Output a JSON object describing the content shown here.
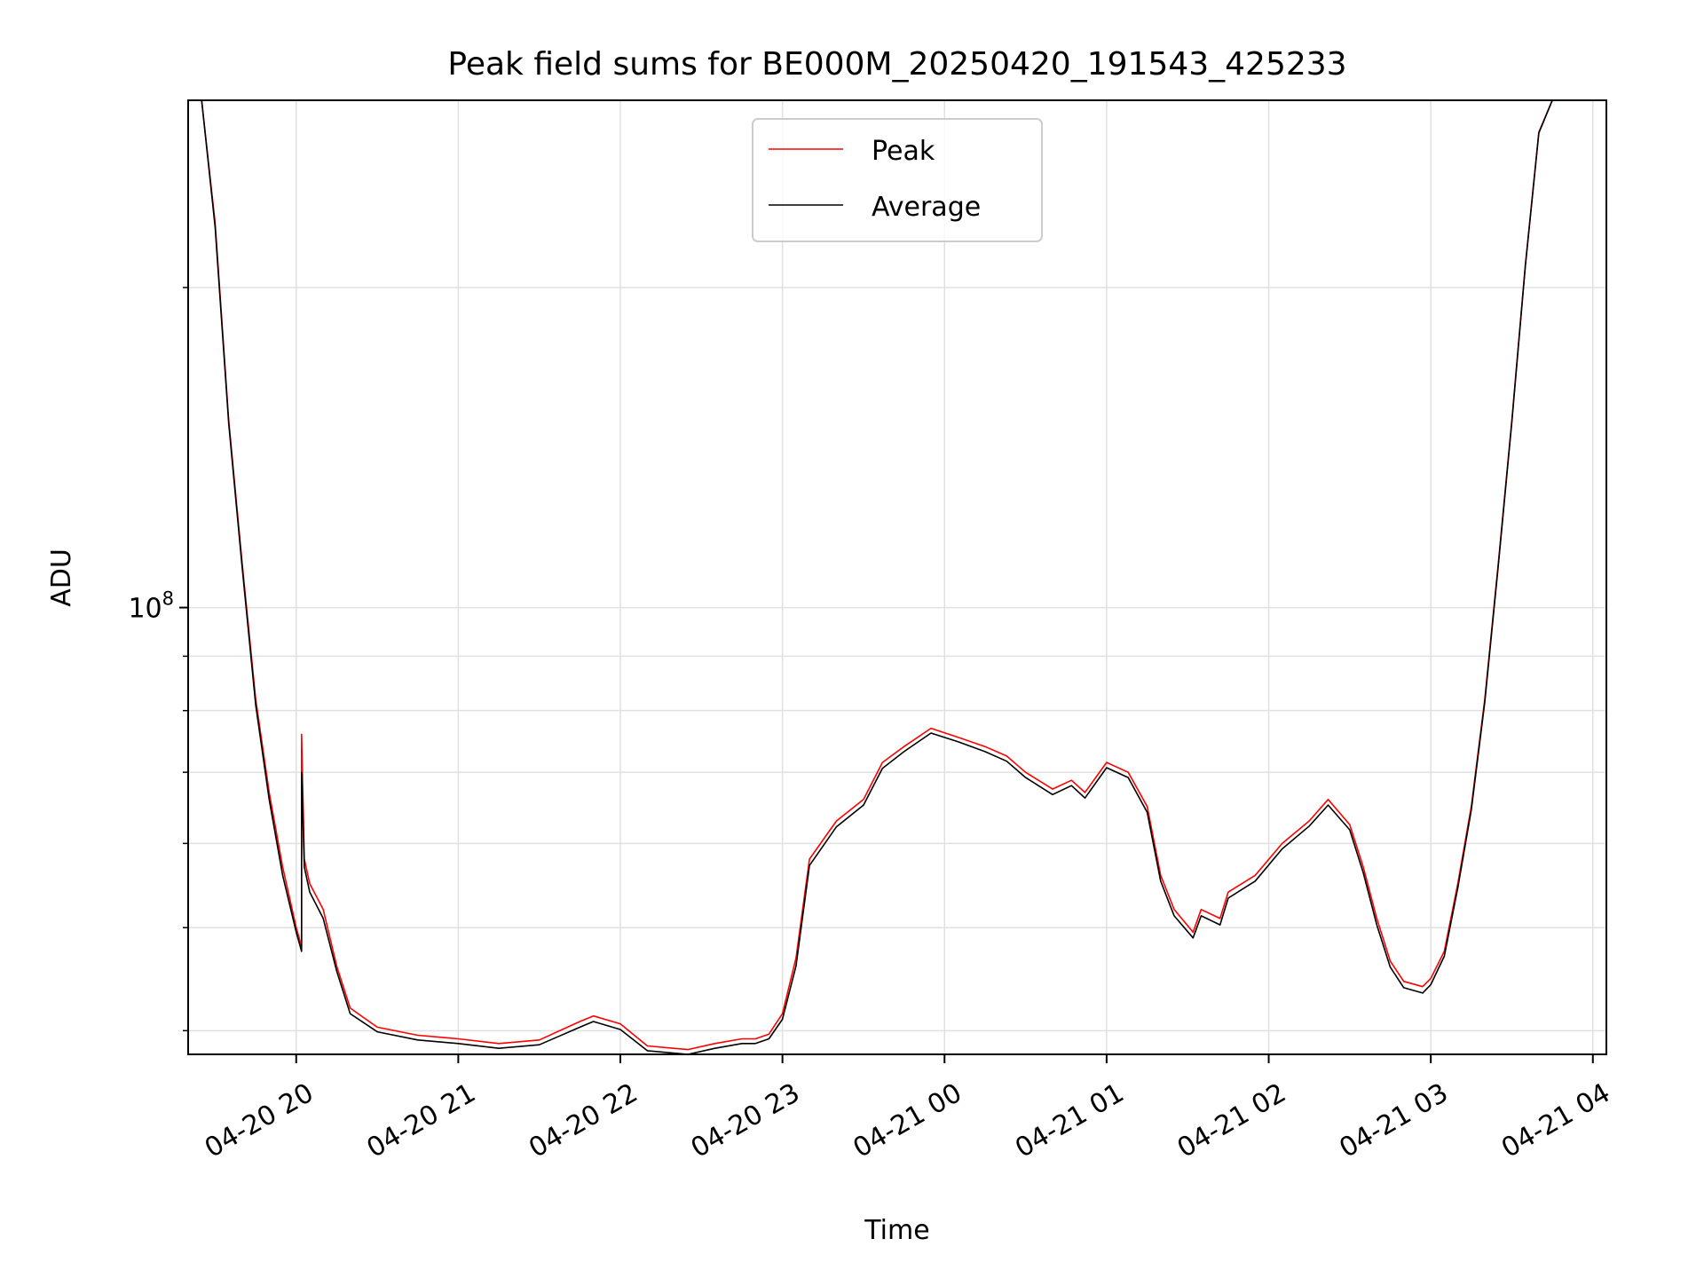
{
  "chart_data": {
    "type": "line",
    "title": "Peak field sums for BE000M_20250420_191543_425233",
    "xlabel": "Time",
    "ylabel": "ADU",
    "yscale": "log",
    "ylim": [
      38000000,
      300000000
    ],
    "xlim": [
      "2025-04-20 19:20",
      "2025-04-21 04:05"
    ],
    "grid": true,
    "legend_position": "upper center",
    "x_tick_labels": [
      "04-20 20",
      "04-20 21",
      "04-20 22",
      "04-20 23",
      "04-21 00",
      "04-21 01",
      "04-21 02",
      "04-21 03",
      "04-21 04"
    ],
    "x_ticks": [
      "2025-04-20 20:00",
      "2025-04-20 21:00",
      "2025-04-20 22:00",
      "2025-04-20 23:00",
      "2025-04-21 00:00",
      "2025-04-21 01:00",
      "2025-04-21 02:00",
      "2025-04-21 03:00",
      "2025-04-21 04:00"
    ],
    "y_major_ticks": [
      {
        "value": 100000000,
        "base": "10",
        "exp": "8"
      }
    ],
    "y_minor_ticks": [
      40000000,
      50000000,
      60000000,
      70000000,
      80000000,
      90000000,
      200000000
    ],
    "series": [
      {
        "name": "Peak",
        "color": "#ff0000",
        "x": [
          "2025-04-20 19:22",
          "2025-04-20 19:25",
          "2025-04-20 19:30",
          "2025-04-20 19:35",
          "2025-04-20 19:40",
          "2025-04-20 19:45",
          "2025-04-20 19:50",
          "2025-04-20 19:55",
          "2025-04-20 20:00",
          "2025-04-20 20:02",
          "2025-04-20 20:02",
          "2025-04-20 20:03",
          "2025-04-20 20:05",
          "2025-04-20 20:10",
          "2025-04-20 20:15",
          "2025-04-20 20:20",
          "2025-04-20 20:30",
          "2025-04-20 20:45",
          "2025-04-20 21:00",
          "2025-04-20 21:15",
          "2025-04-20 21:30",
          "2025-04-20 21:45",
          "2025-04-20 21:50",
          "2025-04-20 22:00",
          "2025-04-20 22:10",
          "2025-04-20 22:25",
          "2025-04-20 22:35",
          "2025-04-20 22:45",
          "2025-04-20 22:50",
          "2025-04-20 22:55",
          "2025-04-20 23:00",
          "2025-04-20 23:05",
          "2025-04-20 23:10",
          "2025-04-20 23:20",
          "2025-04-20 23:30",
          "2025-04-20 23:37",
          "2025-04-20 23:45",
          "2025-04-20 23:55",
          "2025-04-21 00:05",
          "2025-04-21 00:15",
          "2025-04-21 00:23",
          "2025-04-21 00:30",
          "2025-04-21 00:40",
          "2025-04-21 00:47",
          "2025-04-21 00:52",
          "2025-04-21 01:00",
          "2025-04-21 01:08",
          "2025-04-21 01:15",
          "2025-04-21 01:20",
          "2025-04-21 01:25",
          "2025-04-21 01:32",
          "2025-04-21 01:35",
          "2025-04-21 01:42",
          "2025-04-21 01:45",
          "2025-04-21 01:55",
          "2025-04-21 02:05",
          "2025-04-21 02:15",
          "2025-04-21 02:22",
          "2025-04-21 02:30",
          "2025-04-21 02:35",
          "2025-04-21 02:40",
          "2025-04-21 02:45",
          "2025-04-21 02:50",
          "2025-04-21 02:57",
          "2025-04-21 03:00",
          "2025-04-21 03:05",
          "2025-04-21 03:10",
          "2025-04-21 03:15",
          "2025-04-21 03:20",
          "2025-04-21 03:25",
          "2025-04-21 03:30",
          "2025-04-21 03:35",
          "2025-04-21 03:40",
          "2025-04-21 03:45"
        ],
        "y": [
          300000000,
          300000000,
          230000000,
          150000000,
          110000000,
          82000000,
          67000000,
          57000000,
          50000000,
          48000000,
          76000000,
          58000000,
          55000000,
          52000000,
          46000000,
          42000000,
          40300000,
          39600000,
          39300000,
          38900000,
          39200000,
          40800000,
          41300000,
          40600000,
          38700000,
          38400000,
          38900000,
          39300000,
          39300000,
          39700000,
          41500000,
          46800000,
          58000000,
          63000000,
          66000000,
          71500000,
          74000000,
          77000000,
          75500000,
          74000000,
          72500000,
          70000000,
          67500000,
          68800000,
          67000000,
          71500000,
          70000000,
          65000000,
          56000000,
          52000000,
          49500000,
          52000000,
          51000000,
          54000000,
          56000000,
          60000000,
          63000000,
          66000000,
          62500000,
          57000000,
          51000000,
          46500000,
          44500000,
          44000000,
          44800000,
          47500000,
          55000000,
          65000000,
          82000000,
          110000000,
          150000000,
          210000000,
          280000000,
          300000000
        ]
      },
      {
        "name": "Average",
        "color": "#000000",
        "x": [
          "2025-04-20 19:22",
          "2025-04-20 19:25",
          "2025-04-20 19:30",
          "2025-04-20 19:35",
          "2025-04-20 19:40",
          "2025-04-20 19:45",
          "2025-04-20 19:50",
          "2025-04-20 19:55",
          "2025-04-20 20:00",
          "2025-04-20 20:02",
          "2025-04-20 20:02",
          "2025-04-20 20:03",
          "2025-04-20 20:05",
          "2025-04-20 20:10",
          "2025-04-20 20:15",
          "2025-04-20 20:20",
          "2025-04-20 20:30",
          "2025-04-20 20:45",
          "2025-04-20 21:00",
          "2025-04-20 21:15",
          "2025-04-20 21:30",
          "2025-04-20 21:45",
          "2025-04-20 21:50",
          "2025-04-20 22:00",
          "2025-04-20 22:10",
          "2025-04-20 22:25",
          "2025-04-20 22:35",
          "2025-04-20 22:45",
          "2025-04-20 22:50",
          "2025-04-20 22:55",
          "2025-04-20 23:00",
          "2025-04-20 23:05",
          "2025-04-20 23:10",
          "2025-04-20 23:20",
          "2025-04-20 23:30",
          "2025-04-20 23:37",
          "2025-04-20 23:45",
          "2025-04-20 23:55",
          "2025-04-21 00:05",
          "2025-04-21 00:15",
          "2025-04-21 00:23",
          "2025-04-21 00:30",
          "2025-04-21 00:40",
          "2025-04-21 00:47",
          "2025-04-21 00:52",
          "2025-04-21 01:00",
          "2025-04-21 01:08",
          "2025-04-21 01:15",
          "2025-04-21 01:20",
          "2025-04-21 01:25",
          "2025-04-21 01:32",
          "2025-04-21 01:35",
          "2025-04-21 01:42",
          "2025-04-21 01:45",
          "2025-04-21 01:55",
          "2025-04-21 02:05",
          "2025-04-21 02:15",
          "2025-04-21 02:22",
          "2025-04-21 02:30",
          "2025-04-21 02:35",
          "2025-04-21 02:40",
          "2025-04-21 02:45",
          "2025-04-21 02:50",
          "2025-04-21 02:57",
          "2025-04-21 03:00",
          "2025-04-21 03:05",
          "2025-04-21 03:10",
          "2025-04-21 03:15",
          "2025-04-21 03:20",
          "2025-04-21 03:25",
          "2025-04-21 03:30",
          "2025-04-21 03:35",
          "2025-04-21 03:40",
          "2025-04-21 03:45"
        ],
        "y": [
          300000000,
          300000000,
          228000000,
          149000000,
          109000000,
          81000000,
          66000000,
          56000000,
          49500000,
          47500000,
          70000000,
          57000000,
          54000000,
          51000000,
          45500000,
          41500000,
          39900000,
          39200000,
          38900000,
          38500000,
          38800000,
          40300000,
          40800000,
          40100000,
          38300000,
          38000000,
          38500000,
          38900000,
          38900000,
          39300000,
          41000000,
          46000000,
          57200000,
          62200000,
          65200000,
          70600000,
          73200000,
          76200000,
          74800000,
          73200000,
          71700000,
          69200000,
          66700000,
          68000000,
          66200000,
          70700000,
          69200000,
          64200000,
          55300000,
          51300000,
          48900000,
          51300000,
          50300000,
          53300000,
          55300000,
          59300000,
          62300000,
          65200000,
          61800000,
          56300000,
          50300000,
          45900000,
          43900000,
          43400000,
          44200000,
          47000000,
          54500000,
          64500000,
          81500000,
          109500000,
          149500000,
          209500000,
          279500000,
          300000000
        ]
      }
    ]
  }
}
